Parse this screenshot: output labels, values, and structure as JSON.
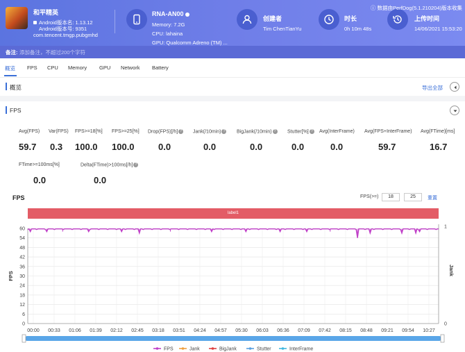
{
  "header": {
    "app": {
      "name": "和平精英",
      "version_line": "Android版本名: 1.13.12",
      "build_line": "Android版本号: 9351",
      "package": "com.tencent.tmgp.pubgmhd"
    },
    "device": {
      "model": "RNA-AN00",
      "memory": "Memory: 7.2G",
      "cpu": "CPU: lahaina",
      "gpu": "GPU: Qualcomm Adreno (TM) ..."
    },
    "creator": {
      "title": "创建者",
      "value": "Tim ChenTianYu"
    },
    "duration": {
      "title": "时长",
      "value": "0h 10m 48s"
    },
    "upload": {
      "title": "上传时间",
      "value": "14/06/2021 15:53:20"
    },
    "data_source": "数据由PerfDog(5.1.210204)版本收集"
  },
  "note": {
    "label": "备注:",
    "placeholder": "添加备注，不超过200个字符"
  },
  "tabs": [
    "概览",
    "FPS",
    "CPU",
    "Memory",
    "GPU",
    "Network",
    "Battery"
  ],
  "overview": {
    "title": "概览",
    "export_label": "导出全部"
  },
  "fps_section": {
    "title": "FPS",
    "metrics_row1": [
      {
        "label": "Avg(FPS)",
        "value": "59.7"
      },
      {
        "label": "Var(FPS)",
        "value": "0.3"
      },
      {
        "label": "FPS>=18[%]",
        "value": "100.0"
      },
      {
        "label": "FPS>=25[%]",
        "value": "100.0"
      },
      {
        "label": "Drop(FPS)[/h]",
        "value": "0.0"
      },
      {
        "label": "Jank(/10min)",
        "value": "0.0"
      },
      {
        "label": "BigJank(/10min)",
        "value": "0.0"
      },
      {
        "label": "Stutter[%]",
        "value": "0.0"
      },
      {
        "label": "Avg(InterFrame)",
        "value": "0.0"
      },
      {
        "label": "Avg(FPS+InterFrame)",
        "value": "59.7"
      },
      {
        "label": "Avg(FTime)[ms]",
        "value": "16.7"
      }
    ],
    "metrics_row2": [
      {
        "label": "FTime>=100ms[%]",
        "value": "0.0"
      },
      {
        "label": "Delta(FTime)>100ms[/h]",
        "value": "0.0"
      }
    ]
  },
  "chart_controls": {
    "title": "FPS",
    "threshold_label": "FPS(>=)",
    "threshold_1": "18",
    "threshold_2": "25",
    "reset_label": "重置",
    "band_label": "label1"
  },
  "colors": {
    "fps": "#c040c8",
    "jank": "#f0a040",
    "bigjank": "#e04040",
    "stutter": "#5aa0e0",
    "interframe": "#40b8e0",
    "header_bg": "#6577e4",
    "accent": "#3a6fd8"
  },
  "chart_data": {
    "type": "line",
    "title": "",
    "ylabel": "FPS",
    "y2label": "Jank",
    "ylim": [
      0,
      60
    ],
    "y2lim": [
      0,
      1
    ],
    "yticks": [
      0,
      6,
      12,
      18,
      24,
      30,
      36,
      42,
      48,
      54,
      60
    ],
    "y2ticks": [
      0,
      1
    ],
    "xtick_labels": [
      "00:00",
      "00:33",
      "01:06",
      "01:39",
      "02:12",
      "02:45",
      "03:18",
      "03:51",
      "04:24",
      "04:57",
      "05:30",
      "06:03",
      "06:36",
      "07:09",
      "07:42",
      "08:15",
      "08:48",
      "09:21",
      "09:54",
      "10:27"
    ],
    "x_range_seconds": [
      0,
      648
    ],
    "series": [
      {
        "name": "FPS",
        "baseline": 59.7,
        "dips": [
          {
            "t": 4,
            "v": 58
          },
          {
            "t": 30,
            "v": 58
          },
          {
            "t": 55,
            "v": 58
          },
          {
            "t": 96,
            "v": 58
          },
          {
            "t": 148,
            "v": 58
          },
          {
            "t": 176,
            "v": 57
          },
          {
            "t": 225,
            "v": 58
          },
          {
            "t": 290,
            "v": 58
          },
          {
            "t": 344,
            "v": 58
          },
          {
            "t": 398,
            "v": 58
          },
          {
            "t": 440,
            "v": 58
          },
          {
            "t": 477,
            "v": 58
          },
          {
            "t": 520,
            "v": 54
          },
          {
            "t": 540,
            "v": 57
          },
          {
            "t": 590,
            "v": 57
          },
          {
            "t": 612,
            "v": 57
          },
          {
            "t": 618,
            "v": 58
          }
        ]
      },
      {
        "name": "Jank",
        "values": []
      },
      {
        "name": "BigJank",
        "values": []
      },
      {
        "name": "Stutter",
        "values": []
      },
      {
        "name": "InterFrame",
        "values": []
      }
    ],
    "grid": true,
    "legend": "bottom"
  }
}
